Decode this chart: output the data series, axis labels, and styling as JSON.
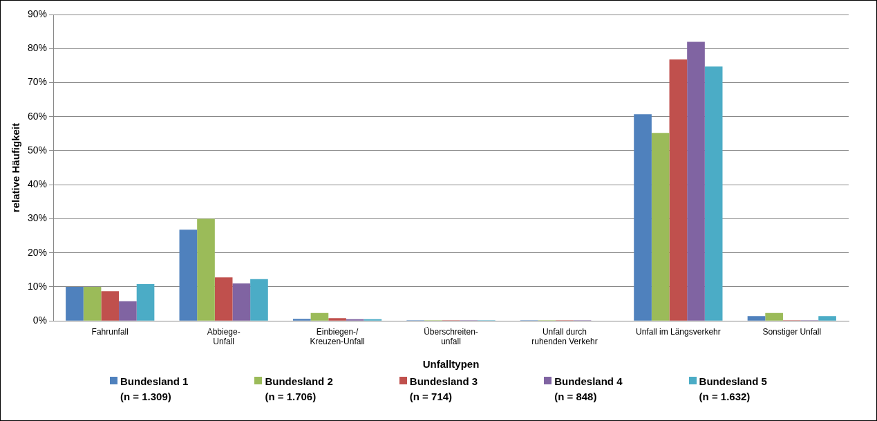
{
  "chart_data": {
    "type": "bar",
    "xlabel": "Unfalltypen",
    "ylabel": "relative Häufigkeit",
    "categories": [
      "Fahrunfall",
      "Abbiege-\nUnfall",
      "Einbiegen-/\nKreuzen-Unfall",
      "Überschreiten-\nunfall",
      "Unfall durch\nruhenden Verkehr",
      "Unfall im Längsverkehr",
      "Sonstiger Unfall"
    ],
    "series": [
      {
        "name": "Bundesland 1\n(n = 1.309)",
        "color": "#4f81bd",
        "values": [
          10,
          26.8,
          0.6,
          0.2,
          0.2,
          60.7,
          1.4
        ]
      },
      {
        "name": "Bundesland 2\n(n = 1.706)",
        "color": "#9bbb59",
        "values": [
          10,
          30,
          2.3,
          0.2,
          0.2,
          55.2,
          2.3
        ]
      },
      {
        "name": "Bundesland 3\n(n = 714)",
        "color": "#c0504d",
        "values": [
          8.7,
          12.8,
          0.8,
          0.2,
          0.2,
          76.8,
          0.2
        ]
      },
      {
        "name": "Bundesland 4\n(n = 848)",
        "color": "#8064a2",
        "values": [
          5.8,
          11,
          0.5,
          0.2,
          0.2,
          82,
          0.2
        ]
      },
      {
        "name": "Bundesland 5\n(n = 1.632)",
        "color": "#4bacc6",
        "values": [
          10.8,
          12.3,
          0.5,
          0.2,
          0,
          74.7,
          1.4
        ]
      }
    ],
    "ylim": [
      0,
      90
    ],
    "yticks": [
      {
        "value": 0,
        "label": "0%"
      },
      {
        "value": 10,
        "label": "10%"
      },
      {
        "value": 20,
        "label": "20%"
      },
      {
        "value": 30,
        "label": "30%"
      },
      {
        "value": 40,
        "label": "40%"
      },
      {
        "value": 50,
        "label": "50%"
      },
      {
        "value": 60,
        "label": "60%"
      },
      {
        "value": 70,
        "label": "70%"
      },
      {
        "value": 80,
        "label": "80%"
      },
      {
        "value": 90,
        "label": "90%"
      }
    ],
    "grid": "y",
    "legend": "bottom"
  }
}
